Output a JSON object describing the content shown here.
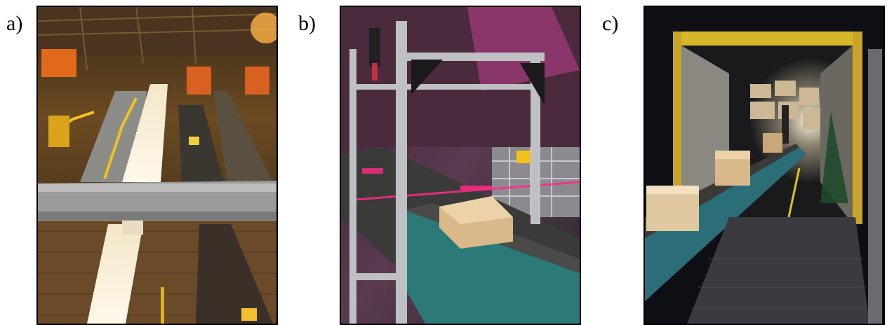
{
  "panels": [
    {
      "label": "a)",
      "subject": "sorting-facility-conveyors"
    },
    {
      "label": "b)",
      "subject": "scanner-tunnel-over-conveyor"
    },
    {
      "label": "c)",
      "subject": "truck-loading-conveyor"
    }
  ],
  "colors": {
    "frame_border": "#000000",
    "label_text": "#000000",
    "laser": "#ff2a8a",
    "conveyor_teal": "#2b7a78",
    "box_cardboard": "#d9b98a"
  }
}
